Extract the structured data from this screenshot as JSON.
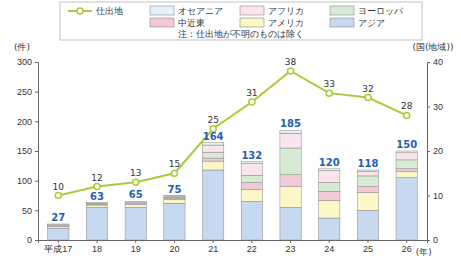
{
  "chart_data": {
    "type": "bar",
    "stacked": true,
    "data_labels": true,
    "annotation": "注：仕出地が不明のものは除く",
    "y_label": "(件)",
    "y2_label": "(国(地域))",
    "x_label": "(年)",
    "categories": [
      "平成17",
      "18",
      "19",
      "20",
      "21",
      "22",
      "23",
      "24",
      "25",
      "26"
    ],
    "ylim": [
      0,
      300
    ],
    "yticks": [
      0,
      50,
      100,
      150,
      200,
      250,
      300
    ],
    "y2lim": [
      0,
      40
    ],
    "y2ticks": [
      0,
      10,
      20,
      30,
      40
    ],
    "totals": [
      27,
      63,
      65,
      75,
      164,
      132,
      185,
      120,
      118,
      150
    ],
    "series": [
      {
        "name": "アジア",
        "color": "#c6d9ee",
        "values": [
          20,
          55,
          55,
          62,
          118,
          65,
          55,
          37,
          50,
          105
        ]
      },
      {
        "name": "アメリカ",
        "color": "#fdf6c6",
        "values": [
          3,
          4,
          5,
          6,
          15,
          20,
          35,
          30,
          30,
          10
        ]
      },
      {
        "name": "中近東",
        "color": "#f3c8d7",
        "values": [
          1,
          1,
          1,
          2,
          5,
          12,
          20,
          15,
          10,
          5
        ]
      },
      {
        "name": "ヨーロッパ",
        "color": "#d7ebd3",
        "values": [
          2,
          2,
          2,
          2,
          10,
          12,
          45,
          15,
          18,
          15
        ]
      },
      {
        "name": "アフリカ",
        "color": "#fbe4ec",
        "values": [
          1,
          1,
          2,
          2,
          12,
          20,
          25,
          20,
          8,
          12
        ]
      },
      {
        "name": "オセアニア",
        "color": "#e4f2fb",
        "values": [
          0,
          0,
          0,
          1,
          4,
          3,
          5,
          3,
          2,
          3
        ]
      },
      {
        "name": "仕出地",
        "type": "line",
        "axis": "y2",
        "color": "#a8cc3a",
        "marker": "circle",
        "values": [
          10,
          12,
          13,
          15,
          25,
          31,
          38,
          33,
          32,
          28
        ]
      }
    ]
  }
}
